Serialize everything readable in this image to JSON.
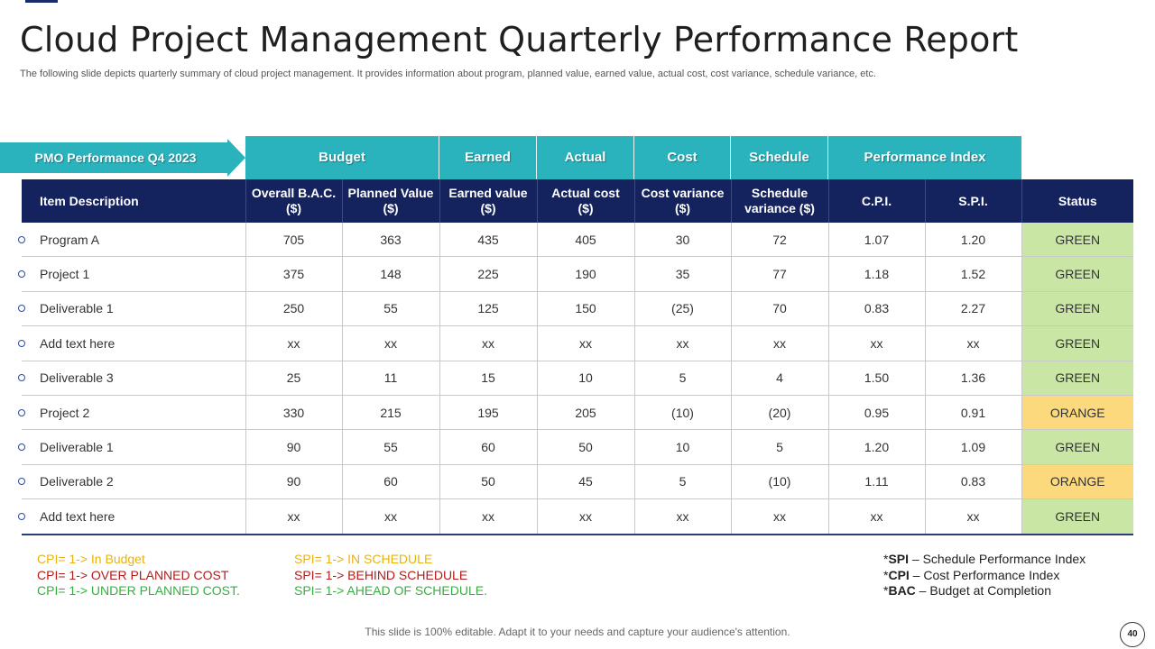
{
  "title": "Cloud Project Management Quarterly Performance Report",
  "subtitle": "The following slide depicts quarterly summary of cloud project management. It provides information about program, planned value, earned value, actual cost, cost variance, schedule variance, etc.",
  "pmo_label": "PMO Performance Q4 2023",
  "group_headers": [
    "Budget",
    "Earned",
    "Actual",
    "Cost",
    "Schedule",
    "Performance Index"
  ],
  "columns": {
    "item": "Item Description",
    "bac_line1": "Overall B.A.C.",
    "bac_line2": "($)",
    "pv_line1": "Planned Value",
    "pv_line2": "($)",
    "ev_line1": "Earned value",
    "ev_line2": "($)",
    "ac_line1": "Actual  cost",
    "ac_line2": "($)",
    "cv_line1": "Cost variance",
    "cv_line2": "($)",
    "sv_line1": "Schedule",
    "sv_line2": "variance ($)",
    "cpi": "C.P.I.",
    "spi": "S.P.I.",
    "status": "Status"
  },
  "rows": [
    {
      "item": "Program A",
      "bac": "705",
      "pv": "363",
      "ev": "435",
      "ac": "405",
      "cv": "30",
      "sv": "72",
      "cpi": "1.07",
      "spi": "1.20",
      "status": "GREEN"
    },
    {
      "item": "Project 1",
      "bac": "375",
      "pv": "148",
      "ev": "225",
      "ac": "190",
      "cv": "35",
      "sv": "77",
      "cpi": "1.18",
      "spi": "1.52",
      "status": "GREEN"
    },
    {
      "item": "Deliverable  1",
      "bac": "250",
      "pv": "55",
      "ev": "125",
      "ac": "150",
      "cv": "(25)",
      "sv": "70",
      "cpi": "0.83",
      "spi": "2.27",
      "status": "GREEN"
    },
    {
      "item": "Add text here",
      "bac": "xx",
      "pv": "xx",
      "ev": "xx",
      "ac": "xx",
      "cv": "xx",
      "sv": "xx",
      "cpi": "xx",
      "spi": "xx",
      "status": "GREEN"
    },
    {
      "item": "Deliverable  3",
      "bac": "25",
      "pv": "11",
      "ev": "15",
      "ac": "10",
      "cv": "5",
      "sv": "4",
      "cpi": "1.50",
      "spi": "1.36",
      "status": "GREEN"
    },
    {
      "item": "Project 2",
      "bac": "330",
      "pv": "215",
      "ev": "195",
      "ac": "205",
      "cv": "(10)",
      "sv": "(20)",
      "cpi": "0.95",
      "spi": "0.91",
      "status": "ORANGE"
    },
    {
      "item": "Deliverable  1",
      "bac": "90",
      "pv": "55",
      "ev": "60",
      "ac": "50",
      "cv": "10",
      "sv": "5",
      "cpi": "1.20",
      "spi": "1.09",
      "status": "GREEN"
    },
    {
      "item": "Deliverable  2",
      "bac": "90",
      "pv": "60",
      "ev": "50",
      "ac": "45",
      "cv": "5",
      "sv": "(10)",
      "cpi": "1.11",
      "spi": "0.83",
      "status": "ORANGE"
    },
    {
      "item": "Add text here",
      "bac": "xx",
      "pv": "xx",
      "ev": "xx",
      "ac": "xx",
      "cv": "xx",
      "sv": "xx",
      "cpi": "xx",
      "spi": "xx",
      "status": "GREEN"
    }
  ],
  "legend": {
    "cpi": [
      {
        "text": "CPI= 1-> In Budget",
        "tone": "yellow"
      },
      {
        "text": "CPI= 1-> OVER PLANNED COST",
        "tone": "red"
      },
      {
        "text": "CPI= 1-> UNDER PLANNED COST.",
        "tone": "green"
      }
    ],
    "spi": [
      {
        "text": "SPI= 1-> IN SCHEDULE",
        "tone": "yellow"
      },
      {
        "text": "SPI= 1-> BEHIND SCHEDULE",
        "tone": "red"
      },
      {
        "text": "SPI= 1-> AHEAD OF SCHEDULE.",
        "tone": "green"
      }
    ]
  },
  "definitions": [
    {
      "abbr": "SPI",
      "desc": " – Schedule Performance Index"
    },
    {
      "abbr": "CPI",
      "desc": " – Cost Performance Index"
    },
    {
      "abbr": "BAC",
      "desc": " – Budget at Completion"
    }
  ],
  "footer": "This slide is 100% editable. Adapt it to your needs and capture your audience's attention.",
  "page_number": "40",
  "colors": {
    "navy": "#14235e",
    "teal": "#2ab3bd",
    "status_green": "#c9e6a4",
    "status_orange": "#fcd97c",
    "value_green": "#6cbf3a",
    "value_red": "#b01e1e"
  }
}
